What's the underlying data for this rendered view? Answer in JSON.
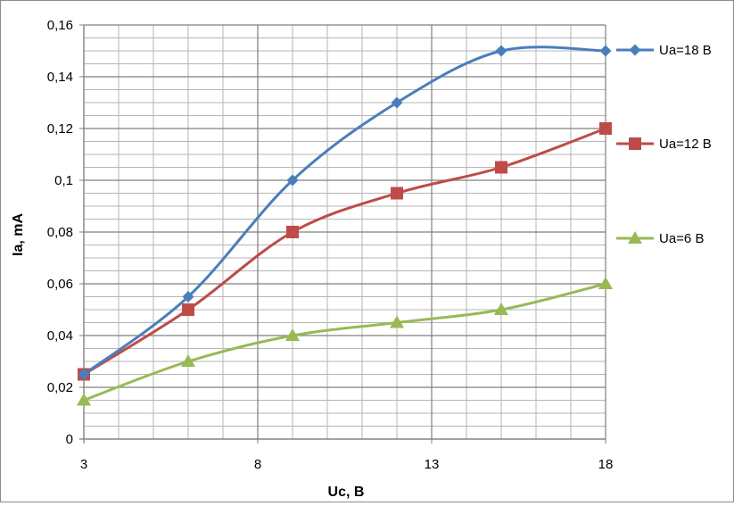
{
  "chart_data": {
    "type": "line",
    "xlabel": "Uc, В",
    "ylabel": "Ia, mA",
    "xlim": [
      3,
      18
    ],
    "ylim": [
      0,
      0.16
    ],
    "x_ticks": [
      3,
      8,
      13,
      18
    ],
    "x_tick_labels": [
      "3",
      "8",
      "13",
      "18"
    ],
    "y_ticks": [
      0,
      0.02,
      0.04,
      0.06,
      0.08,
      0.1,
      0.12,
      0.14,
      0.16
    ],
    "y_tick_labels": [
      "0",
      "0,02",
      "0,04",
      "0,06",
      "0,08",
      "0,1",
      "0,12",
      "0,14",
      "0,16"
    ],
    "grid": true,
    "minor_x_step": 1,
    "minor_y_step": 0.005,
    "legend_position": "right",
    "smooth": true,
    "series": [
      {
        "name": "Ua=18 В",
        "color": "#4a7ebb",
        "marker": "diamond",
        "x": [
          3,
          6,
          9,
          12,
          15,
          18
        ],
        "values": [
          0.025,
          0.055,
          0.1,
          0.13,
          0.15,
          0.15
        ]
      },
      {
        "name": "Ua=12 В",
        "color": "#be4b48",
        "marker": "square",
        "x": [
          3,
          6,
          9,
          12,
          15,
          18
        ],
        "values": [
          0.025,
          0.05,
          0.08,
          0.095,
          0.105,
          0.12
        ]
      },
      {
        "name": "Ua=6 В",
        "color": "#98b954",
        "marker": "triangle",
        "x": [
          3,
          6,
          9,
          12,
          15,
          18
        ],
        "values": [
          0.015,
          0.03,
          0.04,
          0.045,
          0.05,
          0.06
        ]
      }
    ]
  }
}
